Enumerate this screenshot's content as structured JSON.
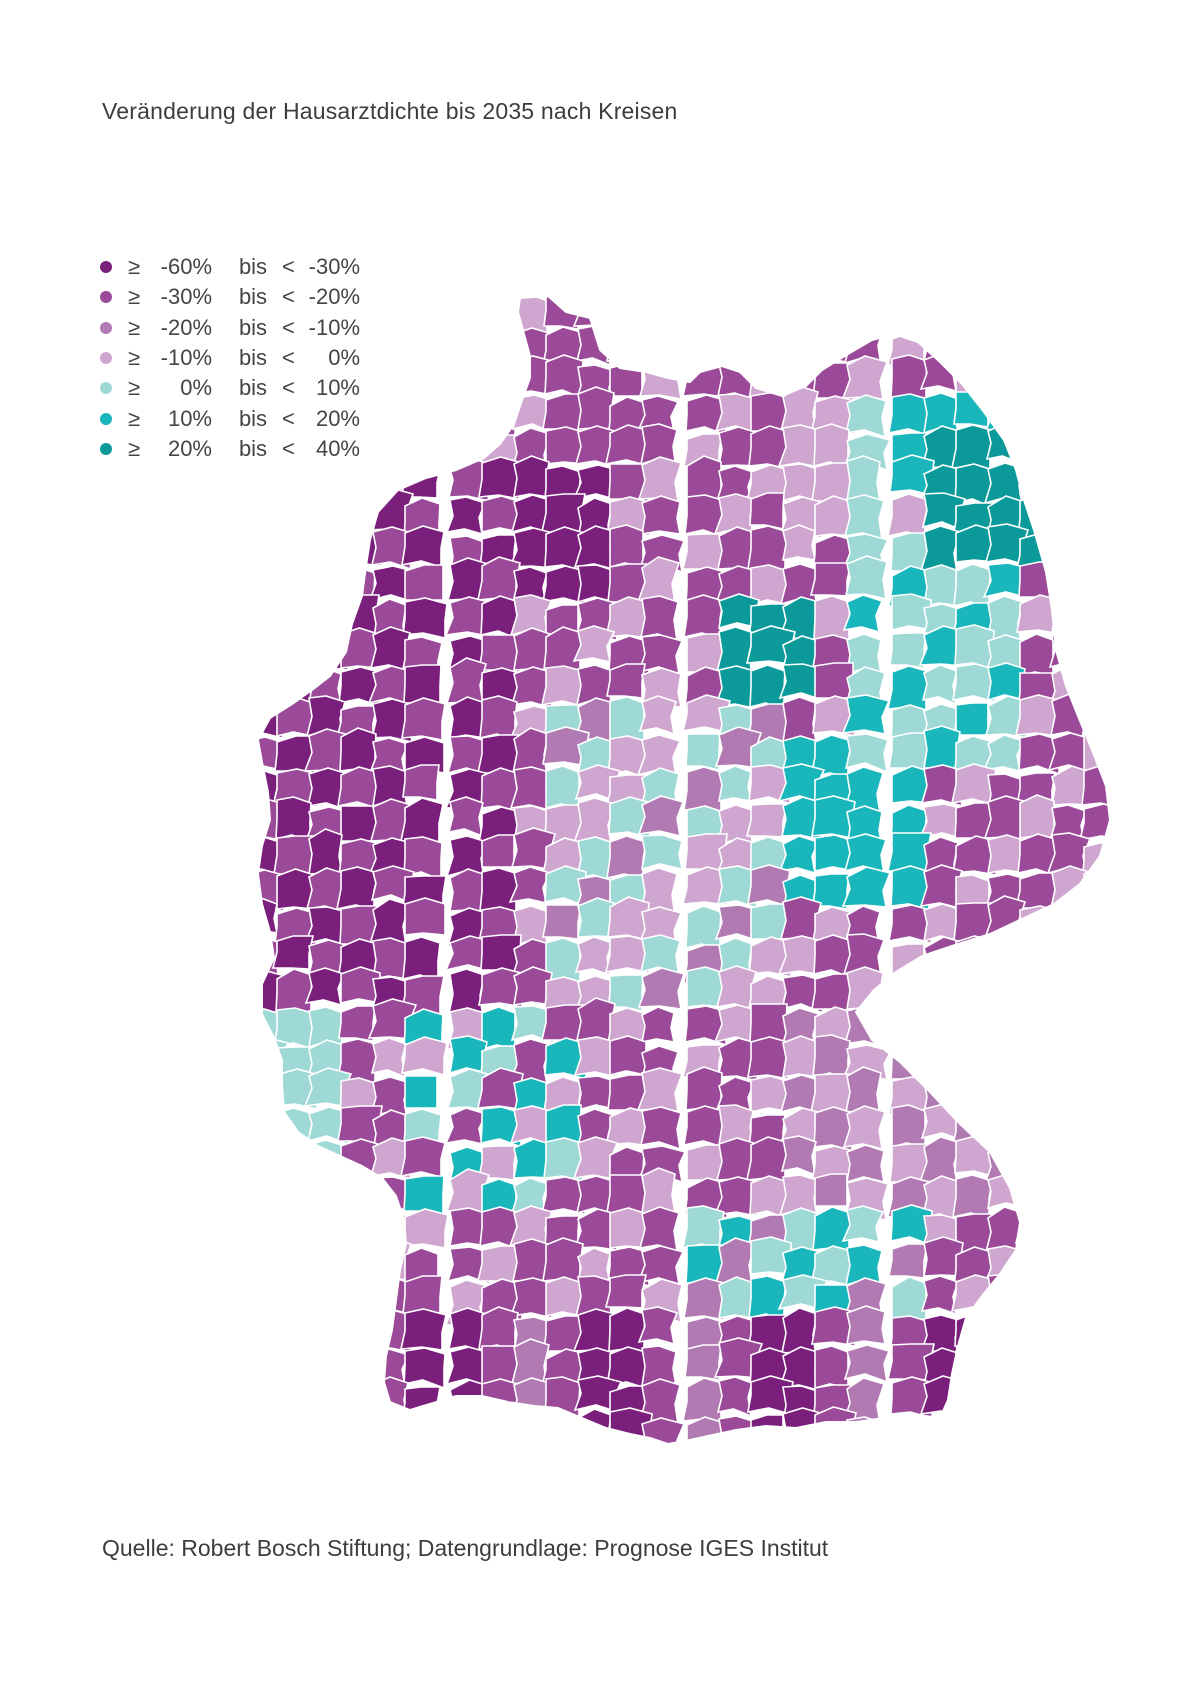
{
  "title": "Veränderung der Hausarztdichte bis 2035 nach Kreisen",
  "legend": [
    {
      "op": "≥",
      "from": "-60%",
      "bis": "bis",
      "lt": "<",
      "to": "-30%",
      "color": "#7a1f7c"
    },
    {
      "op": "≥",
      "from": "-30%",
      "bis": "bis",
      "lt": "<",
      "to": "-20%",
      "color": "#9a4a98"
    },
    {
      "op": "≥",
      "from": "-20%",
      "bis": "bis",
      "lt": "<",
      "to": "-10%",
      "color": "#b27ab2"
    },
    {
      "op": "≥",
      "from": "-10%",
      "bis": "bis",
      "lt": "<",
      "to": "0%",
      "color": "#cfa6cf"
    },
    {
      "op": "≥",
      "from": "0%",
      "bis": "bis",
      "lt": "<",
      "to": "10%",
      "color": "#9ed9d6"
    },
    {
      "op": "≥",
      "from": "10%",
      "bis": "bis",
      "lt": "<",
      "to": "20%",
      "color": "#19b7bb"
    },
    {
      "op": "≥",
      "from": "20%",
      "bis": "bis",
      "lt": "<",
      "to": "40%",
      "color": "#0b9a99"
    }
  ],
  "source": "Quelle: Robert Bosch Stiftung; Datengrundlage: Prognose IGES Institut",
  "map": {
    "subject": "Germany",
    "border_color": "#ffffff"
  }
}
